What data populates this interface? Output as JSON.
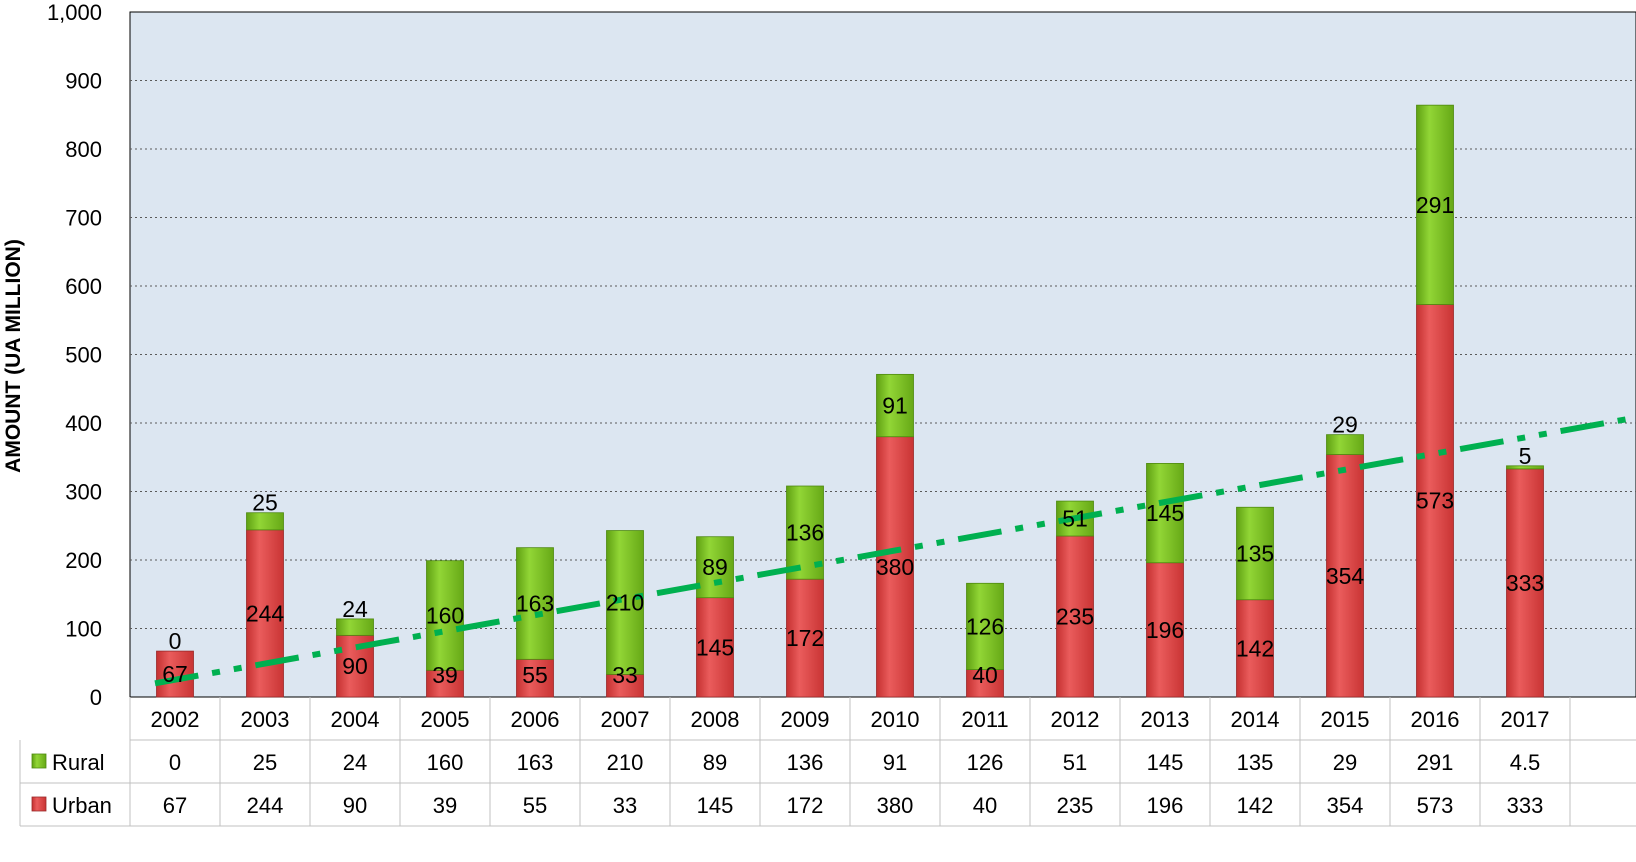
{
  "chart_data": {
    "type": "bar",
    "stacked": true,
    "ylabel": "AMOUNT (UA MILLION)",
    "ylim": [
      0,
      1000
    ],
    "yticks": [
      0,
      100,
      200,
      300,
      400,
      500,
      600,
      700,
      800,
      900,
      1000
    ],
    "ytick_labels": [
      "0",
      "100",
      "200",
      "300",
      "400",
      "500",
      "600",
      "700",
      "800",
      "900",
      "1,000"
    ],
    "grid": true,
    "legend": "data-table-left",
    "categories": [
      "2002",
      "2003",
      "2004",
      "2005",
      "2006",
      "2007",
      "2008",
      "2009",
      "2010",
      "2011",
      "2012",
      "2013",
      "2014",
      "2015",
      "2016",
      "2017"
    ],
    "series": [
      {
        "name": "Urban",
        "color": "#e04a4a",
        "values": [
          67,
          244,
          90,
          39,
          55,
          33,
          145,
          172,
          380,
          40,
          235,
          196,
          142,
          354,
          573,
          333
        ],
        "labels": [
          "67",
          "244",
          "90",
          "39",
          "55",
          "33",
          "145",
          "172",
          "380",
          "40",
          "235",
          "196",
          "142",
          "354",
          "573",
          "333"
        ]
      },
      {
        "name": "Rural",
        "color": "#7fc41e",
        "values": [
          0,
          25,
          24,
          160,
          163,
          210,
          89,
          136,
          91,
          126,
          51,
          145,
          135,
          29,
          291,
          4.5
        ],
        "labels": [
          "0",
          "25",
          "24",
          "160",
          "163",
          "210",
          "89",
          "136",
          "91",
          "126",
          "51",
          "145",
          "135",
          "29",
          "291",
          "5"
        ]
      }
    ],
    "data_table": {
      "rows": [
        {
          "name": "Rural",
          "values": [
            "0",
            "25",
            "24",
            "160",
            "163",
            "210",
            "89",
            "136",
            "91",
            "126",
            "51",
            "145",
            "135",
            "29",
            "291",
            "4.5"
          ]
        },
        {
          "name": "Urban",
          "values": [
            "67",
            "244",
            "90",
            "39",
            "55",
            "33",
            "145",
            "172",
            "380",
            "40",
            "235",
            "196",
            "142",
            "354",
            "573",
            "333"
          ]
        }
      ]
    },
    "trendline": {
      "type": "linear",
      "style": "dash-dot",
      "color": "#00b050",
      "start": 20,
      "end": 408
    }
  }
}
